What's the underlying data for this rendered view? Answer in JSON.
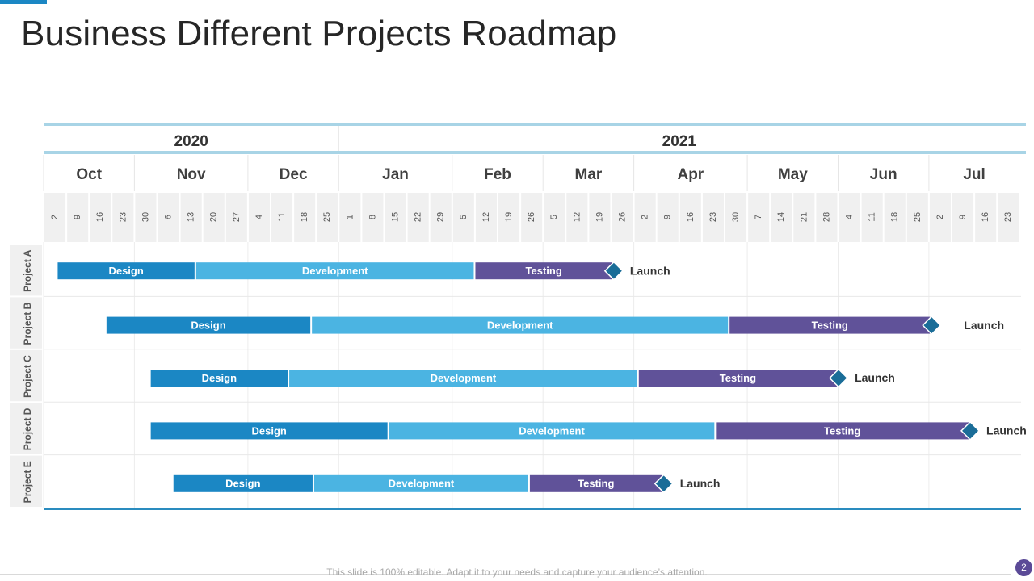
{
  "title": "Business Different Projects Roadmap",
  "footer_note": "This slide is 100% editable. Adapt it to your needs and capture your audience’s attention.",
  "page_number": "2",
  "colors": {
    "design": "#1b87c4",
    "development": "#4bb4e2",
    "testing": "#605299",
    "milestone": "#1a6d98",
    "header_line": "#a8d4e6",
    "bottom_line": "#2a8cbf"
  },
  "chart_data": {
    "type": "gantt",
    "years": [
      {
        "label": "2020",
        "months": [
          "Oct",
          "Nov",
          "Dec"
        ]
      },
      {
        "label": "2021",
        "months": [
          "Jan",
          "Feb",
          "Mar",
          "Apr",
          "May",
          "Jun",
          "Jul"
        ]
      }
    ],
    "months": [
      {
        "label": "Oct",
        "days": [
          "2",
          "9",
          "16",
          "23"
        ]
      },
      {
        "label": "Nov",
        "days": [
          "30",
          "6",
          "13",
          "20",
          "27"
        ]
      },
      {
        "label": "Dec",
        "days": [
          "4",
          "11",
          "18",
          "25"
        ]
      },
      {
        "label": "Jan",
        "days": [
          "1",
          "8",
          "15",
          "22",
          "29"
        ]
      },
      {
        "label": "Feb",
        "days": [
          "5",
          "12",
          "19",
          "26"
        ]
      },
      {
        "label": "Mar",
        "days": [
          "5",
          "12",
          "19",
          "26"
        ]
      },
      {
        "label": "Apr",
        "days": [
          "2",
          "9",
          "16",
          "23",
          "30"
        ]
      },
      {
        "label": "May",
        "days": [
          "7",
          "14",
          "21",
          "28"
        ]
      },
      {
        "label": "Jun",
        "days": [
          "4",
          "11",
          "18",
          "25"
        ]
      },
      {
        "label": "Jul",
        "days": [
          "2",
          "9",
          "16",
          "23"
        ]
      }
    ],
    "projects": [
      {
        "name": "Project A",
        "launch_label": "Launch",
        "launch_week": 24.8,
        "phases": [
          {
            "name": "Design",
            "start_week": 0.3,
            "end_week": 6.4
          },
          {
            "name": "Development",
            "start_week": 6.4,
            "end_week": 18.7
          },
          {
            "name": "Testing",
            "start_week": 18.7,
            "end_week": 24.8
          }
        ]
      },
      {
        "name": "Project B",
        "launch_label": "Launch",
        "launch_week": 38.8,
        "phases": [
          {
            "name": "Design",
            "start_week": 2.45,
            "end_week": 11.5
          },
          {
            "name": "Development",
            "start_week": 11.5,
            "end_week": 29.9
          },
          {
            "name": "Testing",
            "start_week": 29.9,
            "end_week": 38.8
          }
        ]
      },
      {
        "name": "Project C",
        "launch_label": "Launch",
        "launch_week": 34.7,
        "phases": [
          {
            "name": "Design",
            "start_week": 4.4,
            "end_week": 10.5
          },
          {
            "name": "Development",
            "start_week": 10.5,
            "end_week": 25.9
          },
          {
            "name": "Testing",
            "start_week": 25.9,
            "end_week": 34.7
          }
        ]
      },
      {
        "name": "Project D",
        "launch_label": "Launch",
        "launch_week": 40.5,
        "phases": [
          {
            "name": "Design",
            "start_week": 4.4,
            "end_week": 14.9
          },
          {
            "name": "Development",
            "start_week": 14.9,
            "end_week": 29.3
          },
          {
            "name": "Testing",
            "start_week": 29.3,
            "end_week": 40.5
          }
        ]
      },
      {
        "name": "Project E",
        "launch_label": "Launch",
        "launch_week": 27.0,
        "phases": [
          {
            "name": "Design",
            "start_week": 5.4,
            "end_week": 11.6
          },
          {
            "name": "Development",
            "start_week": 11.6,
            "end_week": 21.1
          },
          {
            "name": "Testing",
            "start_week": 21.1,
            "end_week": 27.0
          }
        ]
      }
    ]
  }
}
